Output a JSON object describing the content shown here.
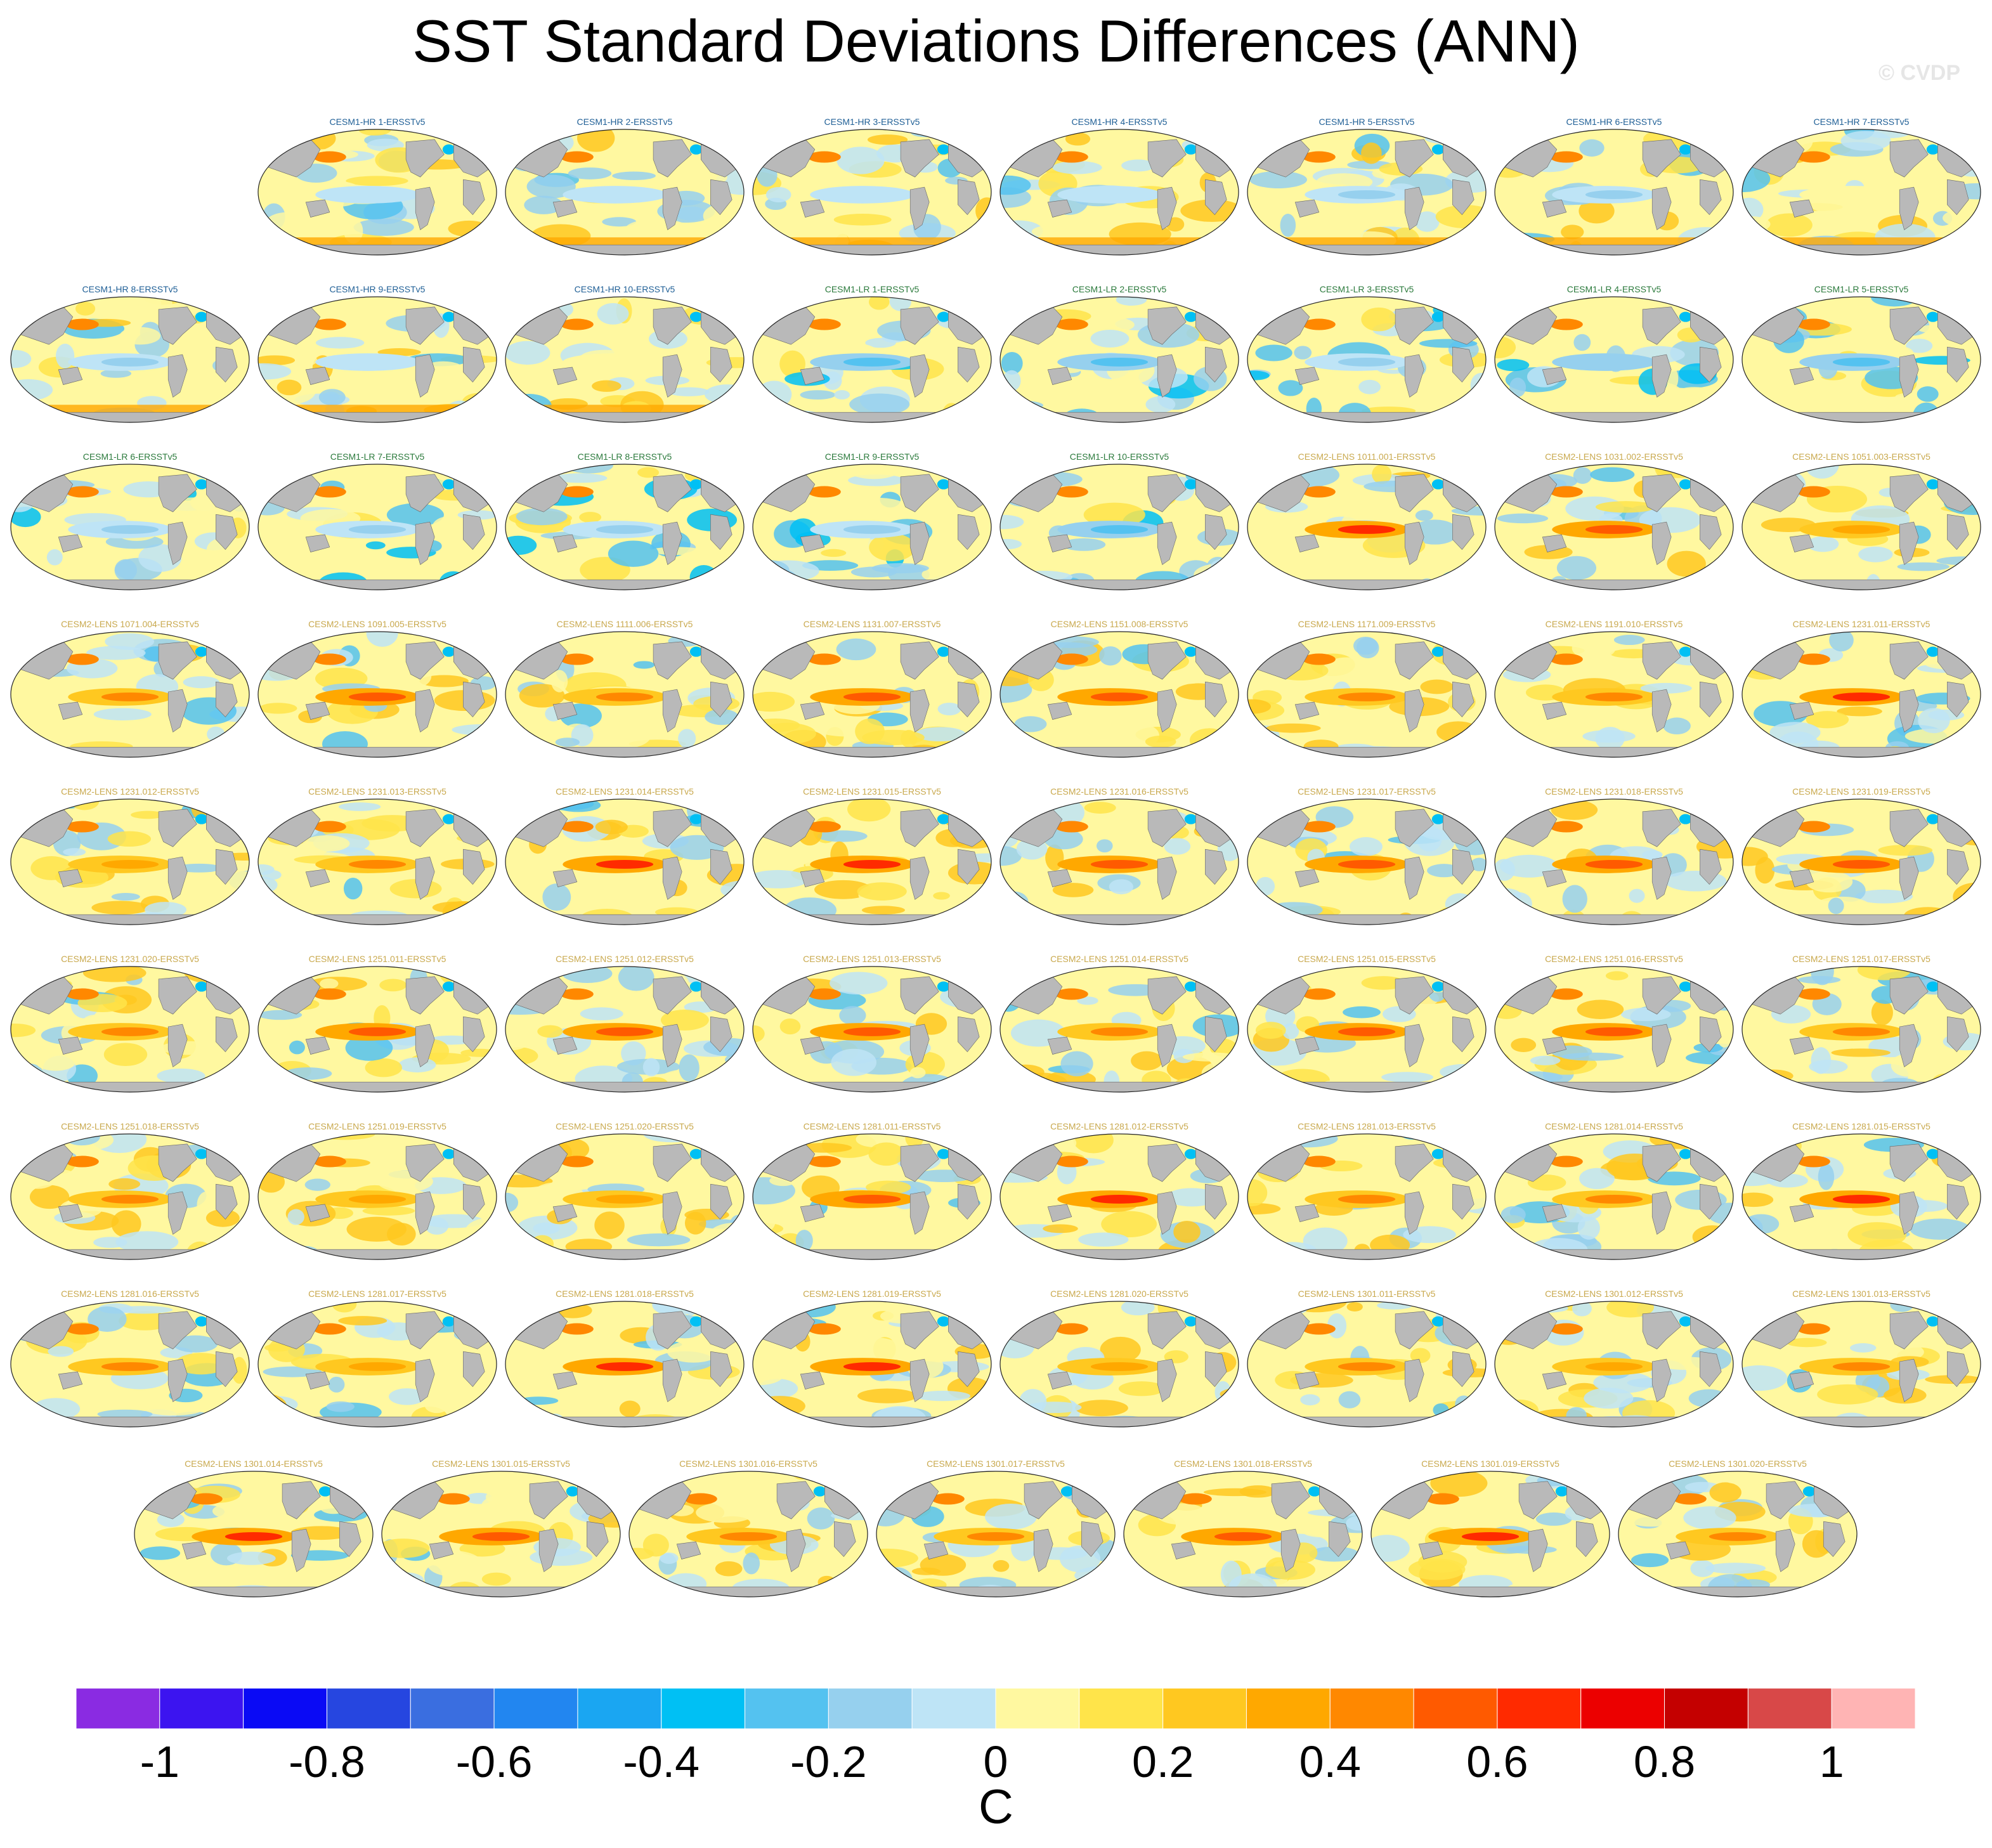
{
  "title": "SST Standard Deviations Differences (ANN)",
  "watermark": "© CVDP",
  "chart_data": {
    "type": "heatmap",
    "title": "SST Standard Deviations Differences (ANN)",
    "map_projection": "robinson-like global maps",
    "colorbar": {
      "units": "C",
      "tick_values": [
        -1,
        -0.8,
        -0.6,
        -0.4,
        -0.2,
        0,
        0.2,
        0.4,
        0.6,
        0.8,
        1
      ],
      "tick_labels": [
        "-1",
        "-0.8",
        "-0.6",
        "-0.4",
        "-0.2",
        "0",
        "0.2",
        "0.4",
        "0.6",
        "0.8",
        "1"
      ],
      "boundaries": [
        -1.1,
        -1.0,
        -0.9,
        -0.8,
        -0.7,
        -0.6,
        -0.5,
        -0.4,
        -0.3,
        -0.2,
        -0.1,
        0.0,
        0.1,
        0.2,
        0.3,
        0.4,
        0.5,
        0.6,
        0.7,
        0.8,
        0.9,
        1.0,
        1.1
      ],
      "colors": [
        "#8a2be2",
        "#3c14f0",
        "#0a0af5",
        "#2646e0",
        "#3a6ee0",
        "#2286f0",
        "#1aa6f2",
        "#00c0f4",
        "#54c2f0",
        "#96d0ee",
        "#bee4f6",
        "#fff8a0",
        "#ffe44a",
        "#ffc820",
        "#ffa800",
        "#ff8800",
        "#ff5a00",
        "#ff2a00",
        "#ec0000",
        "#c40000",
        "#d84848",
        "#ffb4b4"
      ]
    },
    "land_color": "#b9b9b9",
    "panels": [
      {
        "label": "CESM1-HR 1-ERSSTv5",
        "group": "CESM1-HR"
      },
      {
        "label": "CESM1-HR 2-ERSSTv5",
        "group": "CESM1-HR"
      },
      {
        "label": "CESM1-HR 3-ERSSTv5",
        "group": "CESM1-HR"
      },
      {
        "label": "CESM1-HR 4-ERSSTv5",
        "group": "CESM1-HR"
      },
      {
        "label": "CESM1-HR 5-ERSSTv5",
        "group": "CESM1-HR"
      },
      {
        "label": "CESM1-HR 6-ERSSTv5",
        "group": "CESM1-HR"
      },
      {
        "label": "CESM1-HR 7-ERSSTv5",
        "group": "CESM1-HR"
      },
      {
        "label": "CESM1-HR 8-ERSSTv5",
        "group": "CESM1-HR"
      },
      {
        "label": "CESM1-HR 9-ERSSTv5",
        "group": "CESM1-HR"
      },
      {
        "label": "CESM1-HR 10-ERSSTv5",
        "group": "CESM1-HR"
      },
      {
        "label": "CESM1-LR 1-ERSSTv5",
        "group": "CESM1-LR"
      },
      {
        "label": "CESM1-LR 2-ERSSTv5",
        "group": "CESM1-LR"
      },
      {
        "label": "CESM1-LR 3-ERSSTv5",
        "group": "CESM1-LR"
      },
      {
        "label": "CESM1-LR 4-ERSSTv5",
        "group": "CESM1-LR"
      },
      {
        "label": "CESM1-LR 5-ERSSTv5",
        "group": "CESM1-LR"
      },
      {
        "label": "CESM1-LR 6-ERSSTv5",
        "group": "CESM1-LR"
      },
      {
        "label": "CESM1-LR 7-ERSSTv5",
        "group": "CESM1-LR"
      },
      {
        "label": "CESM1-LR 8-ERSSTv5",
        "group": "CESM1-LR"
      },
      {
        "label": "CESM1-LR 9-ERSSTv5",
        "group": "CESM1-LR"
      },
      {
        "label": "CESM1-LR 10-ERSSTv5",
        "group": "CESM1-LR"
      },
      {
        "label": "CESM2-LENS 1011.001-ERSSTv5",
        "group": "CESM2-LENS"
      },
      {
        "label": "CESM2-LENS 1031.002-ERSSTv5",
        "group": "CESM2-LENS"
      },
      {
        "label": "CESM2-LENS 1051.003-ERSSTv5",
        "group": "CESM2-LENS"
      },
      {
        "label": "CESM2-LENS 1071.004-ERSSTv5",
        "group": "CESM2-LENS"
      },
      {
        "label": "CESM2-LENS 1091.005-ERSSTv5",
        "group": "CESM2-LENS"
      },
      {
        "label": "CESM2-LENS 1111.006-ERSSTv5",
        "group": "CESM2-LENS"
      },
      {
        "label": "CESM2-LENS 1131.007-ERSSTv5",
        "group": "CESM2-LENS"
      },
      {
        "label": "CESM2-LENS 1151.008-ERSSTv5",
        "group": "CESM2-LENS"
      },
      {
        "label": "CESM2-LENS 1171.009-ERSSTv5",
        "group": "CESM2-LENS"
      },
      {
        "label": "CESM2-LENS 1191.010-ERSSTv5",
        "group": "CESM2-LENS"
      },
      {
        "label": "CESM2-LENS 1231.011-ERSSTv5",
        "group": "CESM2-LENS"
      },
      {
        "label": "CESM2-LENS 1231.012-ERSSTv5",
        "group": "CESM2-LENS"
      },
      {
        "label": "CESM2-LENS 1231.013-ERSSTv5",
        "group": "CESM2-LENS"
      },
      {
        "label": "CESM2-LENS 1231.014-ERSSTv5",
        "group": "CESM2-LENS"
      },
      {
        "label": "CESM2-LENS 1231.015-ERSSTv5",
        "group": "CESM2-LENS"
      },
      {
        "label": "CESM2-LENS 1231.016-ERSSTv5",
        "group": "CESM2-LENS"
      },
      {
        "label": "CESM2-LENS 1231.017-ERSSTv5",
        "group": "CESM2-LENS"
      },
      {
        "label": "CESM2-LENS 1231.018-ERSSTv5",
        "group": "CESM2-LENS"
      },
      {
        "label": "CESM2-LENS 1231.019-ERSSTv5",
        "group": "CESM2-LENS"
      },
      {
        "label": "CESM2-LENS 1231.020-ERSSTv5",
        "group": "CESM2-LENS"
      },
      {
        "label": "CESM2-LENS 1251.011-ERSSTv5",
        "group": "CESM2-LENS"
      },
      {
        "label": "CESM2-LENS 1251.012-ERSSTv5",
        "group": "CESM2-LENS"
      },
      {
        "label": "CESM2-LENS 1251.013-ERSSTv5",
        "group": "CESM2-LENS"
      },
      {
        "label": "CESM2-LENS 1251.014-ERSSTv5",
        "group": "CESM2-LENS"
      },
      {
        "label": "CESM2-LENS 1251.015-ERSSTv5",
        "group": "CESM2-LENS"
      },
      {
        "label": "CESM2-LENS 1251.016-ERSSTv5",
        "group": "CESM2-LENS"
      },
      {
        "label": "CESM2-LENS 1251.017-ERSSTv5",
        "group": "CESM2-LENS"
      },
      {
        "label": "CESM2-LENS 1251.018-ERSSTv5",
        "group": "CESM2-LENS"
      },
      {
        "label": "CESM2-LENS 1251.019-ERSSTv5",
        "group": "CESM2-LENS"
      },
      {
        "label": "CESM2-LENS 1251.020-ERSSTv5",
        "group": "CESM2-LENS"
      },
      {
        "label": "CESM2-LENS 1281.011-ERSSTv5",
        "group": "CESM2-LENS"
      },
      {
        "label": "CESM2-LENS 1281.012-ERSSTv5",
        "group": "CESM2-LENS"
      },
      {
        "label": "CESM2-LENS 1281.013-ERSSTv5",
        "group": "CESM2-LENS"
      },
      {
        "label": "CESM2-LENS 1281.014-ERSSTv5",
        "group": "CESM2-LENS"
      },
      {
        "label": "CESM2-LENS 1281.015-ERSSTv5",
        "group": "CESM2-LENS"
      },
      {
        "label": "CESM2-LENS 1281.016-ERSSTv5",
        "group": "CESM2-LENS"
      },
      {
        "label": "CESM2-LENS 1281.017-ERSSTv5",
        "group": "CESM2-LENS"
      },
      {
        "label": "CESM2-LENS 1281.018-ERSSTv5",
        "group": "CESM2-LENS"
      },
      {
        "label": "CESM2-LENS 1281.019-ERSSTv5",
        "group": "CESM2-LENS"
      },
      {
        "label": "CESM2-LENS 1281.020-ERSSTv5",
        "group": "CESM2-LENS"
      },
      {
        "label": "CESM2-LENS 1301.011-ERSSTv5",
        "group": "CESM2-LENS"
      },
      {
        "label": "CESM2-LENS 1301.012-ERSSTv5",
        "group": "CESM2-LENS"
      },
      {
        "label": "CESM2-LENS 1301.013-ERSSTv5",
        "group": "CESM2-LENS"
      },
      {
        "label": "CESM2-LENS 1301.014-ERSSTv5",
        "group": "CESM2-LENS"
      },
      {
        "label": "CESM2-LENS 1301.015-ERSSTv5",
        "group": "CESM2-LENS"
      },
      {
        "label": "CESM2-LENS 1301.016-ERSSTv5",
        "group": "CESM2-LENS"
      },
      {
        "label": "CESM2-LENS 1301.017-ERSSTv5",
        "group": "CESM2-LENS"
      },
      {
        "label": "CESM2-LENS 1301.018-ERSSTv5",
        "group": "CESM2-LENS"
      },
      {
        "label": "CESM2-LENS 1301.019-ERSSTv5",
        "group": "CESM2-LENS"
      },
      {
        "label": "CESM2-LENS 1301.020-ERSSTv5",
        "group": "CESM2-LENS"
      }
    ]
  }
}
